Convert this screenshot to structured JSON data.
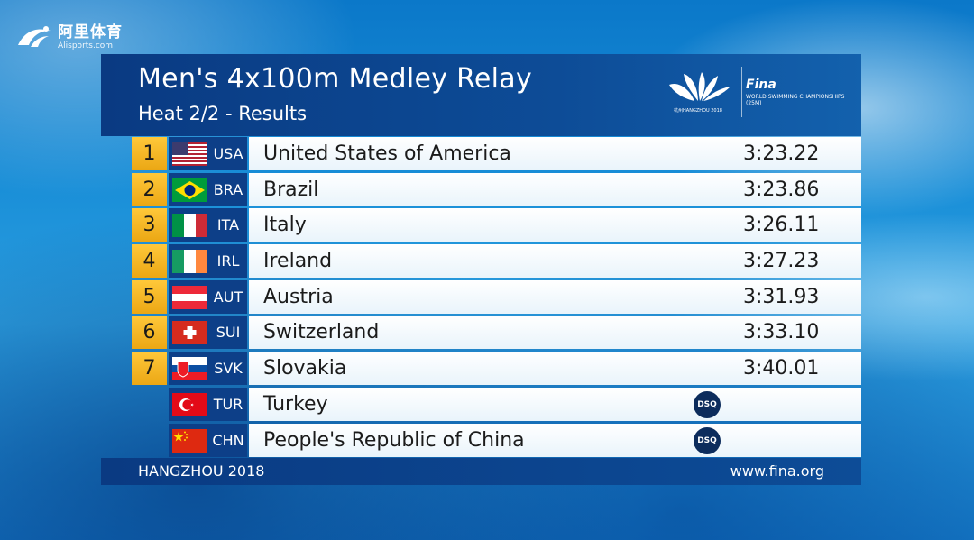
{
  "watermark": {
    "cn": "阿里体育",
    "en": "Alisports.com"
  },
  "header": {
    "title": "Men's 4x100m Medley Relay",
    "subtitle": "Heat 2/2 - Results",
    "hangzhou_caption": "杭州HANGZHOU 2018",
    "fina_brand": "Fina",
    "fina_sub": "WORLD SWIMMING CHAMPIONSHIPS (25M)"
  },
  "results": [
    {
      "rank": "1",
      "code": "USA",
      "name": "United States of America",
      "time": "3:23.22",
      "flag": "usa-flag-icon"
    },
    {
      "rank": "2",
      "code": "BRA",
      "name": "Brazil",
      "time": "3:23.86",
      "flag": "brazil-flag-icon"
    },
    {
      "rank": "3",
      "code": "ITA",
      "name": "Italy",
      "time": "3:26.11",
      "flag": "italy-flag-icon"
    },
    {
      "rank": "4",
      "code": "IRL",
      "name": "Ireland",
      "time": "3:27.23",
      "flag": "ireland-flag-icon"
    },
    {
      "rank": "5",
      "code": "AUT",
      "name": "Austria",
      "time": "3:31.93",
      "flag": "austria-flag-icon"
    },
    {
      "rank": "6",
      "code": "SUI",
      "name": "Switzerland",
      "time": "3:33.10",
      "flag": "switzerland-flag-icon"
    },
    {
      "rank": "7",
      "code": "SVK",
      "name": "Slovakia",
      "time": "3:40.01",
      "flag": "slovakia-flag-icon"
    },
    {
      "rank": "",
      "code": "TUR",
      "name": "Turkey",
      "status": "DSQ",
      "flag": "turkey-flag-icon"
    },
    {
      "rank": "",
      "code": "CHN",
      "name": "People's Republic of China",
      "status": "DSQ",
      "flag": "china-flag-icon"
    }
  ],
  "footer": {
    "left": "HANGZHOU 2018",
    "right": "www.fina.org"
  },
  "colors": {
    "header_navy": "#0d4c97",
    "rank_gold": "#f2b321",
    "row_white": "#ffffff",
    "dsq_badge": "#0c2c5c"
  }
}
